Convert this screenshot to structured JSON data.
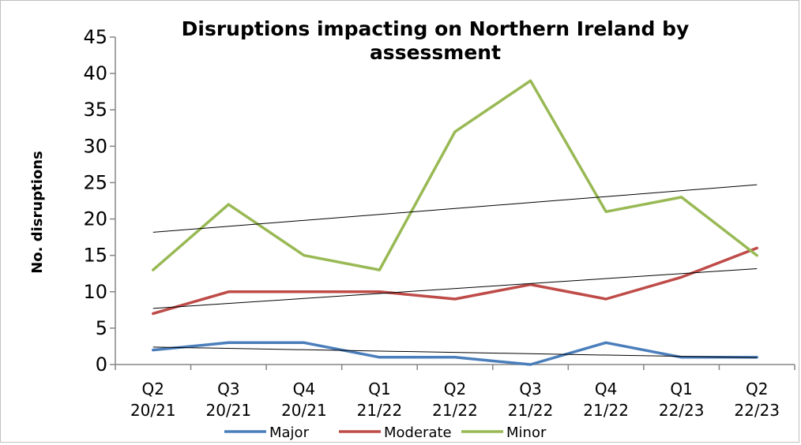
{
  "chart_data": {
    "type": "line",
    "title_lines": [
      "Disruptions impacting on Northern Ireland by",
      "assessment"
    ],
    "xlabel": "",
    "ylabel": "No. disruptions",
    "ylim": [
      0,
      45
    ],
    "yticks": [
      0,
      5,
      10,
      15,
      20,
      25,
      30,
      35,
      40,
      45
    ],
    "categories": [
      [
        "Q2",
        "20/21"
      ],
      [
        "Q3",
        "20/21"
      ],
      [
        "Q4",
        "20/21"
      ],
      [
        "Q1",
        "21/22"
      ],
      [
        "Q2",
        "21/22"
      ],
      [
        "Q3",
        "21/22"
      ],
      [
        "Q4",
        "21/22"
      ],
      [
        "Q1",
        "22/23"
      ],
      [
        "Q2",
        "22/23"
      ]
    ],
    "series": [
      {
        "name": "Major",
        "color": "#4a7ebb",
        "values": [
          2,
          3,
          3,
          1,
          1,
          0,
          3,
          1,
          1
        ]
      },
      {
        "name": "Moderate",
        "color": "#be4b48",
        "values": [
          7,
          10,
          10,
          10,
          9,
          11,
          9,
          12,
          16
        ]
      },
      {
        "name": "Minor",
        "color": "#98b954",
        "values": [
          13,
          22,
          15,
          13,
          32,
          39,
          21,
          23,
          15
        ]
      }
    ],
    "trendlines": true,
    "trendline_color": "#000000",
    "grid": false,
    "legend_position": "bottom"
  }
}
